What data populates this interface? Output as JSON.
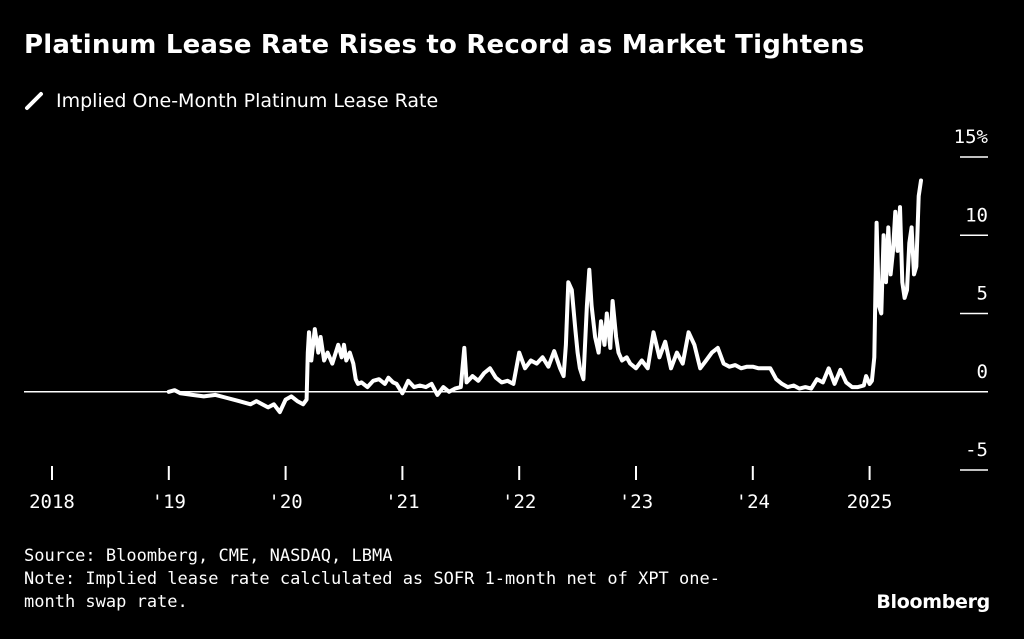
{
  "header": {
    "title": "Platinum Lease Rate Rises to Record as Market Tightens"
  },
  "chart_data": {
    "type": "line",
    "title": "Platinum Lease Rate Rises to Record as Market Tightens",
    "xlabel": "",
    "ylabel": "",
    "xlim": [
      2018.0,
      2025.8
    ],
    "ylim": [
      -5,
      15
    ],
    "grid": false,
    "legend_position": "top-left",
    "x_ticks": [
      2018,
      2019,
      2020,
      2021,
      2022,
      2023,
      2024,
      2025
    ],
    "x_tick_labels": [
      "2018",
      "'19",
      "'20",
      "'21",
      "'22",
      "'23",
      "'24",
      "2025"
    ],
    "y_ticks": [
      15,
      10,
      5,
      0,
      -5
    ],
    "y_tick_labels": [
      "15%",
      "10",
      "5",
      "0",
      "-5"
    ],
    "series": [
      {
        "name": "Implied One-Month Platinum Lease Rate",
        "color": "#ffffff",
        "x": [
          2019.0,
          2019.05,
          2019.1,
          2019.2,
          2019.3,
          2019.4,
          2019.5,
          2019.6,
          2019.65,
          2019.7,
          2019.75,
          2019.8,
          2019.85,
          2019.9,
          2019.95,
          2020.0,
          2020.05,
          2020.1,
          2020.15,
          2020.18,
          2020.19,
          2020.2,
          2020.22,
          2020.25,
          2020.28,
          2020.3,
          2020.33,
          2020.36,
          2020.4,
          2020.45,
          2020.48,
          2020.5,
          2020.52,
          2020.55,
          2020.58,
          2020.6,
          2020.62,
          2020.65,
          2020.7,
          2020.75,
          2020.8,
          2020.85,
          2020.88,
          2020.92,
          2020.95,
          2021.0,
          2021.05,
          2021.1,
          2021.15,
          2021.2,
          2021.25,
          2021.3,
          2021.35,
          2021.4,
          2021.45,
          2021.5,
          2021.53,
          2021.55,
          2021.6,
          2021.65,
          2021.7,
          2021.75,
          2021.8,
          2021.85,
          2021.9,
          2021.95,
          2022.0,
          2022.05,
          2022.1,
          2022.15,
          2022.2,
          2022.25,
          2022.3,
          2022.35,
          2022.38,
          2022.4,
          2022.42,
          2022.45,
          2022.48,
          2022.5,
          2022.52,
          2022.55,
          2022.58,
          2022.6,
          2022.62,
          2022.65,
          2022.68,
          2022.7,
          2022.73,
          2022.75,
          2022.78,
          2022.8,
          2022.83,
          2022.85,
          2022.88,
          2022.92,
          2022.95,
          2023.0,
          2023.05,
          2023.1,
          2023.15,
          2023.2,
          2023.25,
          2023.3,
          2023.35,
          2023.4,
          2023.45,
          2023.5,
          2023.55,
          2023.6,
          2023.65,
          2023.7,
          2023.75,
          2023.8,
          2023.85,
          2023.9,
          2023.95,
          2024.0,
          2024.05,
          2024.1,
          2024.15,
          2024.2,
          2024.25,
          2024.3,
          2024.35,
          2024.4,
          2024.45,
          2024.5,
          2024.55,
          2024.6,
          2024.65,
          2024.7,
          2024.75,
          2024.8,
          2024.85,
          2024.9,
          2024.95,
          2024.97,
          2025.0,
          2025.02,
          2025.04,
          2025.06,
          2025.08,
          2025.1,
          2025.12,
          2025.14,
          2025.16,
          2025.18,
          2025.2,
          2025.22,
          2025.24,
          2025.26,
          2025.28,
          2025.3,
          2025.32,
          2025.34,
          2025.36,
          2025.38,
          2025.4,
          2025.42,
          2025.44
        ],
        "y": [
          0.0,
          0.1,
          -0.1,
          -0.2,
          -0.3,
          -0.2,
          -0.4,
          -0.6,
          -0.7,
          -0.8,
          -0.6,
          -0.8,
          -1.0,
          -0.8,
          -1.3,
          -0.5,
          -0.3,
          -0.6,
          -0.8,
          -0.5,
          2.5,
          3.8,
          2.0,
          4.0,
          2.5,
          3.5,
          2.0,
          2.5,
          1.8,
          3.0,
          2.2,
          3.0,
          2.0,
          2.5,
          1.8,
          0.8,
          0.5,
          0.6,
          0.3,
          0.7,
          0.8,
          0.5,
          0.9,
          0.6,
          0.5,
          -0.1,
          0.7,
          0.3,
          0.4,
          0.3,
          0.5,
          -0.2,
          0.3,
          0.0,
          0.2,
          0.3,
          2.8,
          0.6,
          1.0,
          0.7,
          1.2,
          1.5,
          0.9,
          0.6,
          0.7,
          0.5,
          2.5,
          1.5,
          2.0,
          1.8,
          2.2,
          1.6,
          2.6,
          1.5,
          1.0,
          3.0,
          7.0,
          6.5,
          4.0,
          2.5,
          1.5,
          0.8,
          5.5,
          7.8,
          5.5,
          3.5,
          2.5,
          4.5,
          3.0,
          5.0,
          2.8,
          5.8,
          3.5,
          2.5,
          2.0,
          2.2,
          1.8,
          1.5,
          2.0,
          1.5,
          3.8,
          2.2,
          3.2,
          1.5,
          2.5,
          1.8,
          3.8,
          3.0,
          1.5,
          2.0,
          2.5,
          2.8,
          1.8,
          1.6,
          1.7,
          1.5,
          1.6,
          1.6,
          1.5,
          1.5,
          1.5,
          0.8,
          0.5,
          0.3,
          0.4,
          0.2,
          0.3,
          0.2,
          0.8,
          0.6,
          1.5,
          0.5,
          1.4,
          0.6,
          0.3,
          0.3,
          0.4,
          1.0,
          0.5,
          0.7,
          2.2,
          10.8,
          5.5,
          5.0,
          10.0,
          7.0,
          10.5,
          7.5,
          9.0,
          11.5,
          9.0,
          11.8,
          7.0,
          6.0,
          6.5,
          9.5,
          10.5,
          7.5,
          8.0,
          12.5,
          13.5
        ]
      }
    ]
  },
  "footer": {
    "source": "Source: Bloomberg, CME, NASDAQ, LBMA",
    "note": "Note: Implied lease rate calclulated as SOFR 1-month net of XPT one-month swap rate."
  },
  "brand": {
    "name": "Bloomberg"
  }
}
